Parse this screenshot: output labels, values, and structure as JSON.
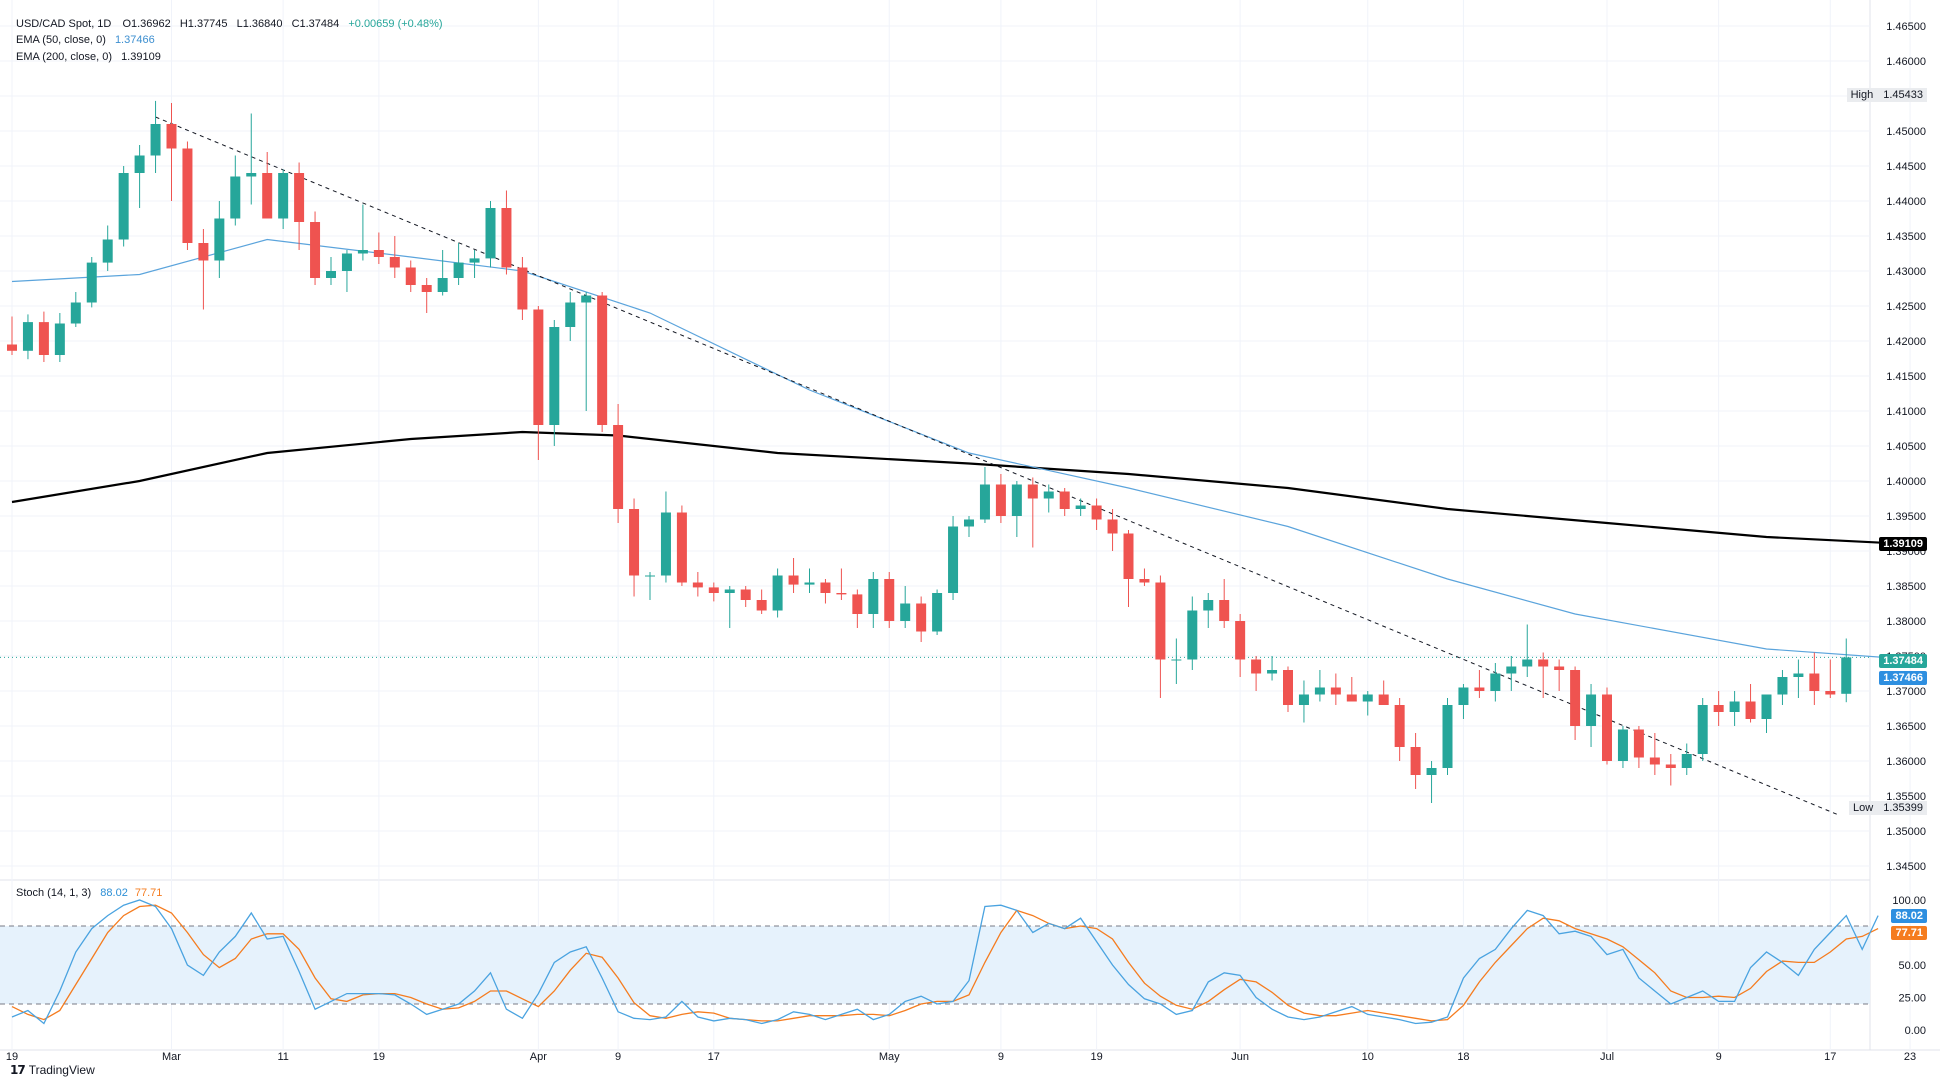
{
  "header": {
    "symbol": "USD/CAD Spot, 1D",
    "open": "O1.36962",
    "high": "H1.37745",
    "low": "L1.36840",
    "close": "C1.37484",
    "change": "+0.00659 (+0.48%)",
    "ema50_label": "EMA (50, close, 0)",
    "ema50_value": "1.37466",
    "ema200_label": "EMA (200, close, 0)",
    "ema200_value": "1.39109",
    "stoch_label": "Stoch (14, 1, 3)",
    "stoch_k": "88.02",
    "stoch_d": "77.71"
  },
  "price_tags": {
    "ema200": "1.39109",
    "close": "1.37484",
    "ema50": "1.37466",
    "high_label": "High",
    "high_value": "1.45433",
    "low_label": "Low",
    "low_value": "1.35399",
    "stoch_k": "88.02",
    "stoch_d": "77.71"
  },
  "brand": "TradingView",
  "colors": {
    "up": "#26a69a",
    "down": "#ef5350",
    "ema50": "#5ba4dc",
    "ema200": "#000000",
    "stoch_k": "#4aa3e0",
    "stoch_d": "#f57c1f",
    "band": "#e6f2fc"
  },
  "chart_data": {
    "type": "candlestick",
    "y_axis_ticks": [
      "1.46500",
      "1.46000",
      "1.45500",
      "1.45000",
      "1.44500",
      "1.44000",
      "1.43500",
      "1.43000",
      "1.42500",
      "1.42000",
      "1.41500",
      "1.41000",
      "1.40500",
      "1.40000",
      "1.39500",
      "1.39000",
      "1.38500",
      "1.38000",
      "1.37500",
      "1.37000",
      "1.36500",
      "1.36000",
      "1.35500",
      "1.35000",
      "1.34500"
    ],
    "x_axis_ticks": [
      "19",
      "Mar",
      "11",
      "19",
      "Apr",
      "9",
      "17",
      "May",
      "9",
      "19",
      "Jun",
      "10",
      "18",
      "Jul",
      "9",
      "17",
      "23"
    ],
    "ylim": [
      1.343,
      1.467
    ],
    "candles": [
      [
        1.4195,
        1.4235,
        1.418,
        1.4186
      ],
      [
        1.4186,
        1.4238,
        1.4174,
        1.4227
      ],
      [
        1.4227,
        1.4242,
        1.417,
        1.418
      ],
      [
        1.418,
        1.424,
        1.417,
        1.4225
      ],
      [
        1.4225,
        1.427,
        1.422,
        1.4255
      ],
      [
        1.4255,
        1.432,
        1.4248,
        1.4312
      ],
      [
        1.4312,
        1.4365,
        1.43,
        1.4345
      ],
      [
        1.4345,
        1.445,
        1.4335,
        1.444
      ],
      [
        1.444,
        1.448,
        1.439,
        1.4465
      ],
      [
        1.4465,
        1.4543,
        1.444,
        1.451
      ],
      [
        1.451,
        1.454,
        1.44,
        1.4475
      ],
      [
        1.4475,
        1.4485,
        1.433,
        1.434
      ],
      [
        1.434,
        1.436,
        1.4245,
        1.4315
      ],
      [
        1.4315,
        1.44,
        1.429,
        1.4375
      ],
      [
        1.4375,
        1.4465,
        1.4365,
        1.4435
      ],
      [
        1.4435,
        1.4525,
        1.4395,
        1.444
      ],
      [
        1.444,
        1.447,
        1.4375,
        1.4375
      ],
      [
        1.4375,
        1.4445,
        1.436,
        1.444
      ],
      [
        1.444,
        1.4455,
        1.433,
        1.437
      ],
      [
        1.437,
        1.4385,
        1.428,
        1.429
      ],
      [
        1.429,
        1.432,
        1.428,
        1.43
      ],
      [
        1.43,
        1.433,
        1.427,
        1.4325
      ],
      [
        1.4325,
        1.4395,
        1.4315,
        1.433
      ],
      [
        1.433,
        1.4355,
        1.431,
        1.432
      ],
      [
        1.432,
        1.435,
        1.429,
        1.4305
      ],
      [
        1.4305,
        1.4315,
        1.427,
        1.428
      ],
      [
        1.428,
        1.429,
        1.424,
        1.427
      ],
      [
        1.427,
        1.433,
        1.4265,
        1.429
      ],
      [
        1.429,
        1.434,
        1.428,
        1.4312
      ],
      [
        1.4312,
        1.433,
        1.429,
        1.4318
      ],
      [
        1.4318,
        1.44,
        1.4305,
        1.439
      ],
      [
        1.439,
        1.4415,
        1.4295,
        1.4305
      ],
      [
        1.4305,
        1.432,
        1.423,
        1.4245
      ],
      [
        1.4245,
        1.425,
        1.403,
        1.408
      ],
      [
        1.408,
        1.423,
        1.405,
        1.422
      ],
      [
        1.422,
        1.427,
        1.42,
        1.4255
      ],
      [
        1.4255,
        1.427,
        1.41,
        1.4265
      ],
      [
        1.4265,
        1.427,
        1.407,
        1.408
      ],
      [
        1.408,
        1.411,
        1.394,
        1.396
      ],
      [
        1.396,
        1.3975,
        1.3835,
        1.3865
      ],
      [
        1.3865,
        1.387,
        1.383,
        1.3865
      ],
      [
        1.3865,
        1.3985,
        1.3855,
        1.3955
      ],
      [
        1.3955,
        1.3965,
        1.385,
        1.3855
      ],
      [
        1.3855,
        1.387,
        1.3835,
        1.3848
      ],
      [
        1.3848,
        1.3855,
        1.3828,
        1.384
      ],
      [
        1.384,
        1.385,
        1.379,
        1.3845
      ],
      [
        1.3845,
        1.385,
        1.382,
        1.383
      ],
      [
        1.383,
        1.3845,
        1.381,
        1.3815
      ],
      [
        1.3815,
        1.3875,
        1.3805,
        1.3865
      ],
      [
        1.3865,
        1.389,
        1.384,
        1.3852
      ],
      [
        1.3852,
        1.3875,
        1.384,
        1.3855
      ],
      [
        1.3855,
        1.386,
        1.3825,
        1.384
      ],
      [
        1.384,
        1.3875,
        1.383,
        1.3838
      ],
      [
        1.3838,
        1.3845,
        1.379,
        1.381
      ],
      [
        1.381,
        1.387,
        1.379,
        1.386
      ],
      [
        1.386,
        1.387,
        1.379,
        1.38
      ],
      [
        1.38,
        1.385,
        1.379,
        1.3825
      ],
      [
        1.3825,
        1.3835,
        1.377,
        1.3785
      ],
      [
        1.3785,
        1.3845,
        1.378,
        1.384
      ],
      [
        1.384,
        1.395,
        1.383,
        1.3935
      ],
      [
        1.3935,
        1.395,
        1.392,
        1.3945
      ],
      [
        1.3945,
        1.402,
        1.394,
        1.3995
      ],
      [
        1.3995,
        1.401,
        1.394,
        1.395
      ],
      [
        1.395,
        1.4,
        1.392,
        1.3995
      ],
      [
        1.3995,
        1.4005,
        1.3905,
        1.3975
      ],
      [
        1.3975,
        1.3995,
        1.3955,
        1.3985
      ],
      [
        1.3985,
        1.399,
        1.395,
        1.396
      ],
      [
        1.396,
        1.3975,
        1.395,
        1.3965
      ],
      [
        1.3965,
        1.3975,
        1.393,
        1.3945
      ],
      [
        1.3945,
        1.396,
        1.39,
        1.3925
      ],
      [
        1.3925,
        1.393,
        1.382,
        1.386
      ],
      [
        1.386,
        1.3875,
        1.385,
        1.3855
      ],
      [
        1.3855,
        1.3865,
        1.369,
        1.3745
      ],
      [
        1.3745,
        1.3775,
        1.371,
        1.3745
      ],
      [
        1.3745,
        1.3835,
        1.373,
        1.3815
      ],
      [
        1.3815,
        1.384,
        1.379,
        1.383
      ],
      [
        1.383,
        1.386,
        1.379,
        1.38
      ],
      [
        1.38,
        1.381,
        1.372,
        1.3745
      ],
      [
        1.3745,
        1.375,
        1.37,
        1.3725
      ],
      [
        1.3725,
        1.375,
        1.3715,
        1.373
      ],
      [
        1.373,
        1.3735,
        1.367,
        1.368
      ],
      [
        1.368,
        1.3715,
        1.3655,
        1.3695
      ],
      [
        1.3695,
        1.373,
        1.3685,
        1.3705
      ],
      [
        1.3705,
        1.3725,
        1.368,
        1.3695
      ],
      [
        1.3695,
        1.372,
        1.3685,
        1.3685
      ],
      [
        1.3685,
        1.37,
        1.3665,
        1.3695
      ],
      [
        1.3695,
        1.3715,
        1.368,
        1.368
      ],
      [
        1.368,
        1.369,
        1.36,
        1.362
      ],
      [
        1.362,
        1.364,
        1.356,
        1.358
      ],
      [
        1.358,
        1.36,
        1.354,
        1.359
      ],
      [
        1.359,
        1.369,
        1.358,
        1.368
      ],
      [
        1.368,
        1.371,
        1.366,
        1.3705
      ],
      [
        1.3705,
        1.373,
        1.369,
        1.37
      ],
      [
        1.37,
        1.374,
        1.3685,
        1.3725
      ],
      [
        1.3725,
        1.375,
        1.37,
        1.3735
      ],
      [
        1.3735,
        1.3795,
        1.372,
        1.3745
      ],
      [
        1.3745,
        1.3755,
        1.369,
        1.3735
      ],
      [
        1.3735,
        1.3745,
        1.37,
        1.373
      ],
      [
        1.373,
        1.3735,
        1.363,
        1.365
      ],
      [
        1.365,
        1.371,
        1.362,
        1.3695
      ],
      [
        1.3695,
        1.3705,
        1.3595,
        1.36
      ],
      [
        1.36,
        1.365,
        1.359,
        1.3645
      ],
      [
        1.3645,
        1.365,
        1.359,
        1.3605
      ],
      [
        1.3605,
        1.364,
        1.358,
        1.3595
      ],
      [
        1.3595,
        1.361,
        1.3565,
        1.359
      ],
      [
        1.359,
        1.3625,
        1.358,
        1.361
      ],
      [
        1.361,
        1.369,
        1.36,
        1.368
      ],
      [
        1.368,
        1.37,
        1.365,
        1.367
      ],
      [
        1.367,
        1.37,
        1.365,
        1.3685
      ],
      [
        1.3685,
        1.371,
        1.3655,
        1.366
      ],
      [
        1.366,
        1.369,
        1.364,
        1.3695
      ],
      [
        1.3695,
        1.373,
        1.368,
        1.372
      ],
      [
        1.372,
        1.3745,
        1.369,
        1.3725
      ],
      [
        1.3725,
        1.3755,
        1.368,
        1.37
      ],
      [
        1.37,
        1.3745,
        1.369,
        1.3695
      ],
      [
        1.3696,
        1.3775,
        1.3684,
        1.3748
      ]
    ],
    "ema50": [
      [
        0,
        1.4285
      ],
      [
        8,
        1.4295
      ],
      [
        16,
        1.4345
      ],
      [
        25,
        1.432
      ],
      [
        32,
        1.43
      ],
      [
        40,
        1.424
      ],
      [
        50,
        1.413
      ],
      [
        60,
        1.404
      ],
      [
        70,
        1.399
      ],
      [
        80,
        1.3935
      ],
      [
        90,
        1.386
      ],
      [
        98,
        1.381
      ],
      [
        110,
        1.376
      ],
      [
        118,
        1.3747
      ]
    ],
    "ema200": [
      [
        0,
        1.397
      ],
      [
        8,
        1.4
      ],
      [
        16,
        1.404
      ],
      [
        25,
        1.406
      ],
      [
        32,
        1.407
      ],
      [
        38,
        1.4065
      ],
      [
        48,
        1.404
      ],
      [
        60,
        1.4025
      ],
      [
        70,
        1.401
      ],
      [
        80,
        1.399
      ],
      [
        90,
        1.396
      ],
      [
        100,
        1.394
      ],
      [
        110,
        1.392
      ],
      [
        118,
        1.3911
      ]
    ],
    "trendline": [
      [
        9,
        1.452
      ],
      [
        118,
        1.349
      ]
    ],
    "stochastic": {
      "ylim": [
        0,
        100
      ],
      "ticks": [
        "100.00",
        "50.00",
        "25.00",
        "0.00"
      ],
      "overbought": 80,
      "oversold": 20,
      "k": [
        10,
        15,
        5,
        30,
        60,
        78,
        88,
        96,
        100,
        95,
        78,
        50,
        42,
        60,
        72,
        90,
        70,
        72,
        45,
        16,
        22,
        28,
        28,
        28,
        27,
        20,
        12,
        16,
        20,
        30,
        44,
        16,
        9,
        28,
        52,
        60,
        64,
        40,
        14,
        9,
        8,
        10,
        22,
        10,
        7,
        9,
        8,
        5,
        8,
        14,
        12,
        8,
        12,
        16,
        8,
        12,
        22,
        26,
        20,
        22,
        38,
        95,
        96,
        92,
        75,
        82,
        78,
        86,
        68,
        50,
        35,
        24,
        20,
        12,
        15,
        37,
        44,
        42,
        25,
        16,
        10,
        8,
        10,
        14,
        18,
        12,
        10,
        8,
        5,
        6,
        10,
        40,
        55,
        62,
        78,
        92,
        88,
        74,
        76,
        72,
        58,
        62,
        40,
        30,
        20,
        25,
        30,
        22,
        22,
        48,
        60,
        52,
        42,
        62,
        75,
        88,
        62,
        88
      ],
      "d": [
        18,
        12,
        8,
        15,
        35,
        55,
        75,
        88,
        95,
        96,
        90,
        75,
        58,
        48,
        55,
        70,
        74,
        74,
        62,
        40,
        24,
        22,
        27,
        28,
        28,
        25,
        20,
        16,
        17,
        22,
        30,
        30,
        24,
        18,
        30,
        46,
        59,
        56,
        40,
        21,
        11,
        9,
        12,
        14,
        13,
        9,
        8,
        7,
        7,
        9,
        11,
        11,
        11,
        12,
        12,
        11,
        15,
        20,
        22,
        22,
        27,
        52,
        75,
        92,
        88,
        82,
        78,
        80,
        78,
        70,
        52,
        36,
        26,
        19,
        16,
        22,
        31,
        39,
        37,
        29,
        19,
        13,
        11,
        11,
        13,
        15,
        13,
        11,
        9,
        7,
        8,
        19,
        37,
        52,
        65,
        78,
        86,
        84,
        78,
        74,
        70,
        64,
        54,
        44,
        30,
        25,
        25,
        26,
        25,
        32,
        45,
        53,
        52,
        52,
        60,
        70,
        72,
        78
      ]
    }
  }
}
